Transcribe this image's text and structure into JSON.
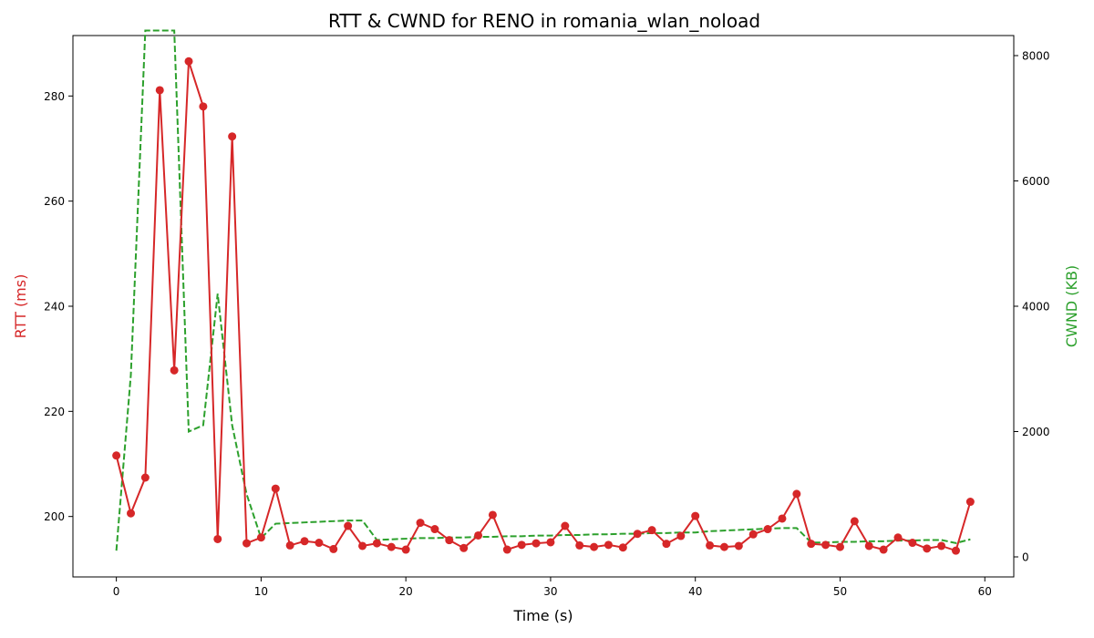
{
  "chart_data": {
    "type": "line",
    "title": "RTT & CWND for RENO in romania_wlan_noload",
    "xlabel": "Time (s)",
    "ylabel_left": "RTT (ms)",
    "ylabel_right": "CWND (KB)",
    "colors": {
      "rtt": "#d62728",
      "cwnd": "#2ca02c"
    },
    "xlim": [
      -3,
      62
    ],
    "ylim_left": [
      188.5,
      291.5
    ],
    "ylim_right": [
      -320,
      8320
    ],
    "x_ticks": [
      0,
      10,
      20,
      30,
      40,
      50,
      60
    ],
    "x_tick_labels": [
      "0",
      "10",
      "20",
      "30",
      "40",
      "50",
      "60"
    ],
    "y_left_ticks": [
      200,
      220,
      240,
      260,
      280
    ],
    "y_left_tick_labels": [
      "200",
      "220",
      "240",
      "260",
      "280"
    ],
    "y_right_ticks": [
      0,
      2000,
      4000,
      6000,
      8000
    ],
    "y_right_tick_labels": [
      "0",
      "2000",
      "4000",
      "6000",
      "8000"
    ],
    "grid": false,
    "x": [
      0,
      1,
      2,
      3,
      4,
      5,
      6,
      7,
      8,
      9,
      10,
      11,
      12,
      13,
      14,
      15,
      16,
      17,
      18,
      19,
      20,
      21,
      22,
      23,
      24,
      25,
      26,
      27,
      28,
      29,
      30,
      31,
      32,
      33,
      34,
      35,
      36,
      37,
      38,
      39,
      40,
      41,
      42,
      43,
      44,
      45,
      46,
      47,
      48,
      49,
      50,
      51,
      52,
      53,
      54,
      55,
      56,
      57,
      58,
      59
    ],
    "series": [
      {
        "key": "rtt",
        "axis": "left",
        "style": "solid-marker",
        "values": [
          211.6,
          200.6,
          207.4,
          281.1,
          227.8,
          286.6,
          278.0,
          195.7,
          272.3,
          194.9,
          196.0,
          205.3,
          194.5,
          195.3,
          195.0,
          193.8,
          198.2,
          194.4,
          194.9,
          194.2,
          193.7,
          198.8,
          197.6,
          195.5,
          194.0,
          196.4,
          200.3,
          193.7,
          194.6,
          194.9,
          195.1,
          198.2,
          194.5,
          194.2,
          194.6,
          194.1,
          196.7,
          197.4,
          194.8,
          196.3,
          200.1,
          194.5,
          194.2,
          194.4,
          196.6,
          197.6,
          199.6,
          204.3,
          194.8,
          194.6,
          194.2,
          199.1,
          194.4,
          193.7,
          196.0,
          195.0,
          193.9,
          194.4,
          193.5,
          202.8
        ]
      },
      {
        "key": "cwnd",
        "axis": "right",
        "style": "dashed",
        "values": [
          100,
          2900,
          8400,
          8400,
          8400,
          2000,
          2100,
          4200,
          2100,
          1000,
          300,
          530,
          540,
          550,
          560,
          570,
          580,
          580,
          270,
          280,
          290,
          300,
          300,
          310,
          310,
          320,
          320,
          330,
          330,
          340,
          340,
          350,
          350,
          360,
          360,
          370,
          370,
          380,
          380,
          390,
          390,
          410,
          420,
          430,
          440,
          450,
          460,
          460,
          230,
          230,
          240,
          240,
          250,
          250,
          260,
          260,
          270,
          270,
          220,
          280
        ]
      }
    ]
  }
}
